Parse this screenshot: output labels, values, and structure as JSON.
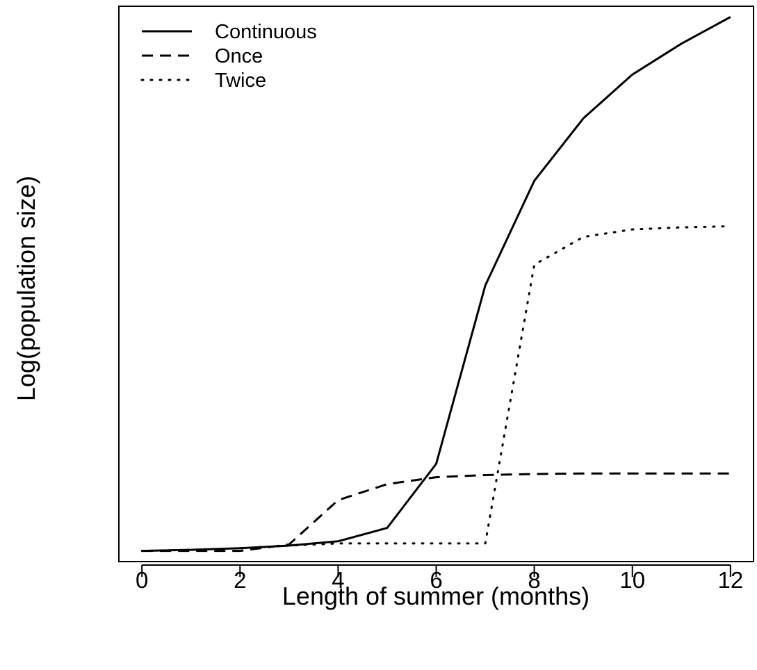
{
  "chart_data": {
    "type": "line",
    "title": "",
    "xlabel": "Length of summer (months)",
    "ylabel": "Log(population size)",
    "xlim": [
      -0.47,
      12.47
    ],
    "ylim": [
      -0.02,
      1.02
    ],
    "x_ticks": [
      0,
      2,
      4,
      6,
      8,
      10,
      12
    ],
    "x_tick_labels": [
      "0",
      "2",
      "4",
      "6",
      "8",
      "10",
      "12"
    ],
    "y_ticks_shown": false,
    "grid": false,
    "legend_position": "top-left",
    "series": [
      {
        "name": "Continuous",
        "line_style": "solid",
        "x": [
          0,
          1,
          2,
          3,
          4,
          5,
          6,
          7,
          8,
          9,
          10,
          11,
          12
        ],
        "y": [
          0.0,
          0.002,
          0.005,
          0.01,
          0.018,
          0.043,
          0.163,
          0.497,
          0.693,
          0.81,
          0.892,
          0.95,
          1.0
        ]
      },
      {
        "name": "Once",
        "line_style": "dashed",
        "x": [
          0,
          1,
          2,
          3,
          4,
          5,
          6,
          7,
          8,
          9,
          10,
          11,
          12
        ],
        "y": [
          0.0,
          0.0,
          0.0,
          0.012,
          0.095,
          0.125,
          0.138,
          0.142,
          0.144,
          0.145,
          0.145,
          0.145,
          0.145
        ]
      },
      {
        "name": "Twice",
        "line_style": "dotted",
        "x": [
          0,
          1,
          2,
          3,
          4,
          5,
          6,
          7,
          8,
          9,
          10,
          11,
          12
        ],
        "y": [
          0.0,
          0.002,
          0.005,
          0.01,
          0.014,
          0.014,
          0.014,
          0.014,
          0.536,
          0.588,
          0.602,
          0.606,
          0.608
        ]
      }
    ]
  }
}
